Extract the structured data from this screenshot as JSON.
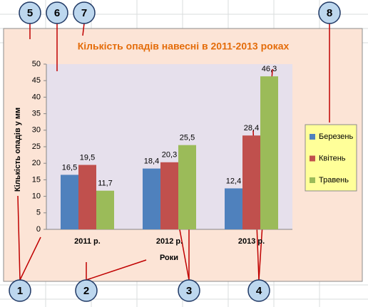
{
  "chart_data": {
    "type": "bar",
    "title": "Кількість опадів навесні в 2011-2013 роках",
    "y_label": "Кількість опадів у мм",
    "x_label": "Роки",
    "categories": [
      "2011 р.",
      "2012 р.",
      "2013 р."
    ],
    "series": [
      {
        "name": "Березень",
        "color": "#4f81bd",
        "values": [
          16.5,
          18.4,
          12.4
        ],
        "value_labels": [
          "16,5",
          "18,4",
          "12,4"
        ]
      },
      {
        "name": "Квітень",
        "color": "#c0504d",
        "values": [
          19.5,
          20.3,
          28.4
        ],
        "value_labels": [
          "19,5",
          "20,3",
          "28,4"
        ]
      },
      {
        "name": "Травень",
        "color": "#9bbb59",
        "values": [
          11.7,
          25.5,
          46.3
        ],
        "value_labels": [
          "11,7",
          "25,5",
          "46,3"
        ]
      }
    ],
    "ylim": [
      0,
      50
    ],
    "yticks": [
      0,
      5,
      10,
      15,
      20,
      25,
      30,
      35,
      40,
      45,
      50
    ],
    "grid": true,
    "legend": "right",
    "annotations": [
      "1",
      "2",
      "3",
      "4",
      "5",
      "6",
      "7",
      "8"
    ]
  }
}
